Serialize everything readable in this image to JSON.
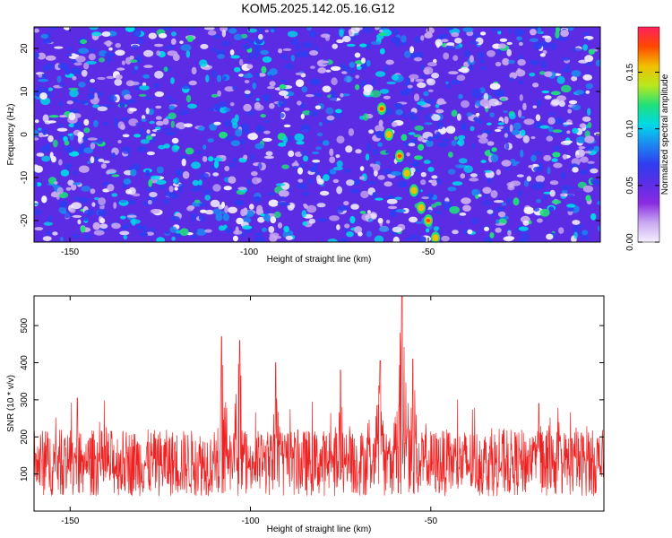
{
  "title": "KOM5.2025.142.05.16.G12",
  "chart_data": [
    {
      "type": "heatmap",
      "xlabel": "Height of straight line (km)",
      "ylabel": "Frequency (Hz)",
      "xlim": [
        -160,
        -2
      ],
      "ylim": [
        -25,
        25
      ],
      "xticks": [
        -150,
        -100,
        -50
      ],
      "yticks": [
        -20,
        -10,
        0,
        10,
        20
      ],
      "colorbar": {
        "label": "Normalized spectral amplitude",
        "ticks": [
          "0.00",
          "0.05",
          "0.10",
          "0.15"
        ],
        "range": [
          0,
          0.19
        ],
        "colors": [
          "#f4f0ff",
          "#c9a8f0",
          "#8a2be2",
          "#5a2ee6",
          "#2f3ef0",
          "#1e88f0",
          "#00d8e8",
          "#20e07a",
          "#b8e81e",
          "#f0c000",
          "#ff4800",
          "#ff2060"
        ]
      },
      "features": [
        {
          "name": "diagonal streak",
          "x": [
            -63,
            -61,
            -58,
            -56,
            -54,
            -52,
            -50,
            -48
          ],
          "y": [
            6,
            0,
            -5,
            -9,
            -13,
            -17,
            -20,
            -24
          ]
        }
      ]
    },
    {
      "type": "line",
      "xlabel": "Height of straight line (km)",
      "ylabel": "SNR (10 * v/v)",
      "xlim": [
        -160,
        -2
      ],
      "ylim": [
        0,
        580
      ],
      "xticks": [
        -150,
        -100,
        -50
      ],
      "yticks": [
        100,
        200,
        300,
        400,
        500
      ],
      "color": "#ee2222",
      "peaks": [
        {
          "x": -108,
          "y": 470
        },
        {
          "x": -103,
          "y": 460
        },
        {
          "x": -58,
          "y": 580
        },
        {
          "x": -64,
          "y": 405
        },
        {
          "x": -55,
          "y": 410
        },
        {
          "x": -93,
          "y": 400
        },
        {
          "x": -75,
          "y": 380
        },
        {
          "x": -148,
          "y": 305
        },
        {
          "x": -20,
          "y": 290
        }
      ]
    }
  ]
}
